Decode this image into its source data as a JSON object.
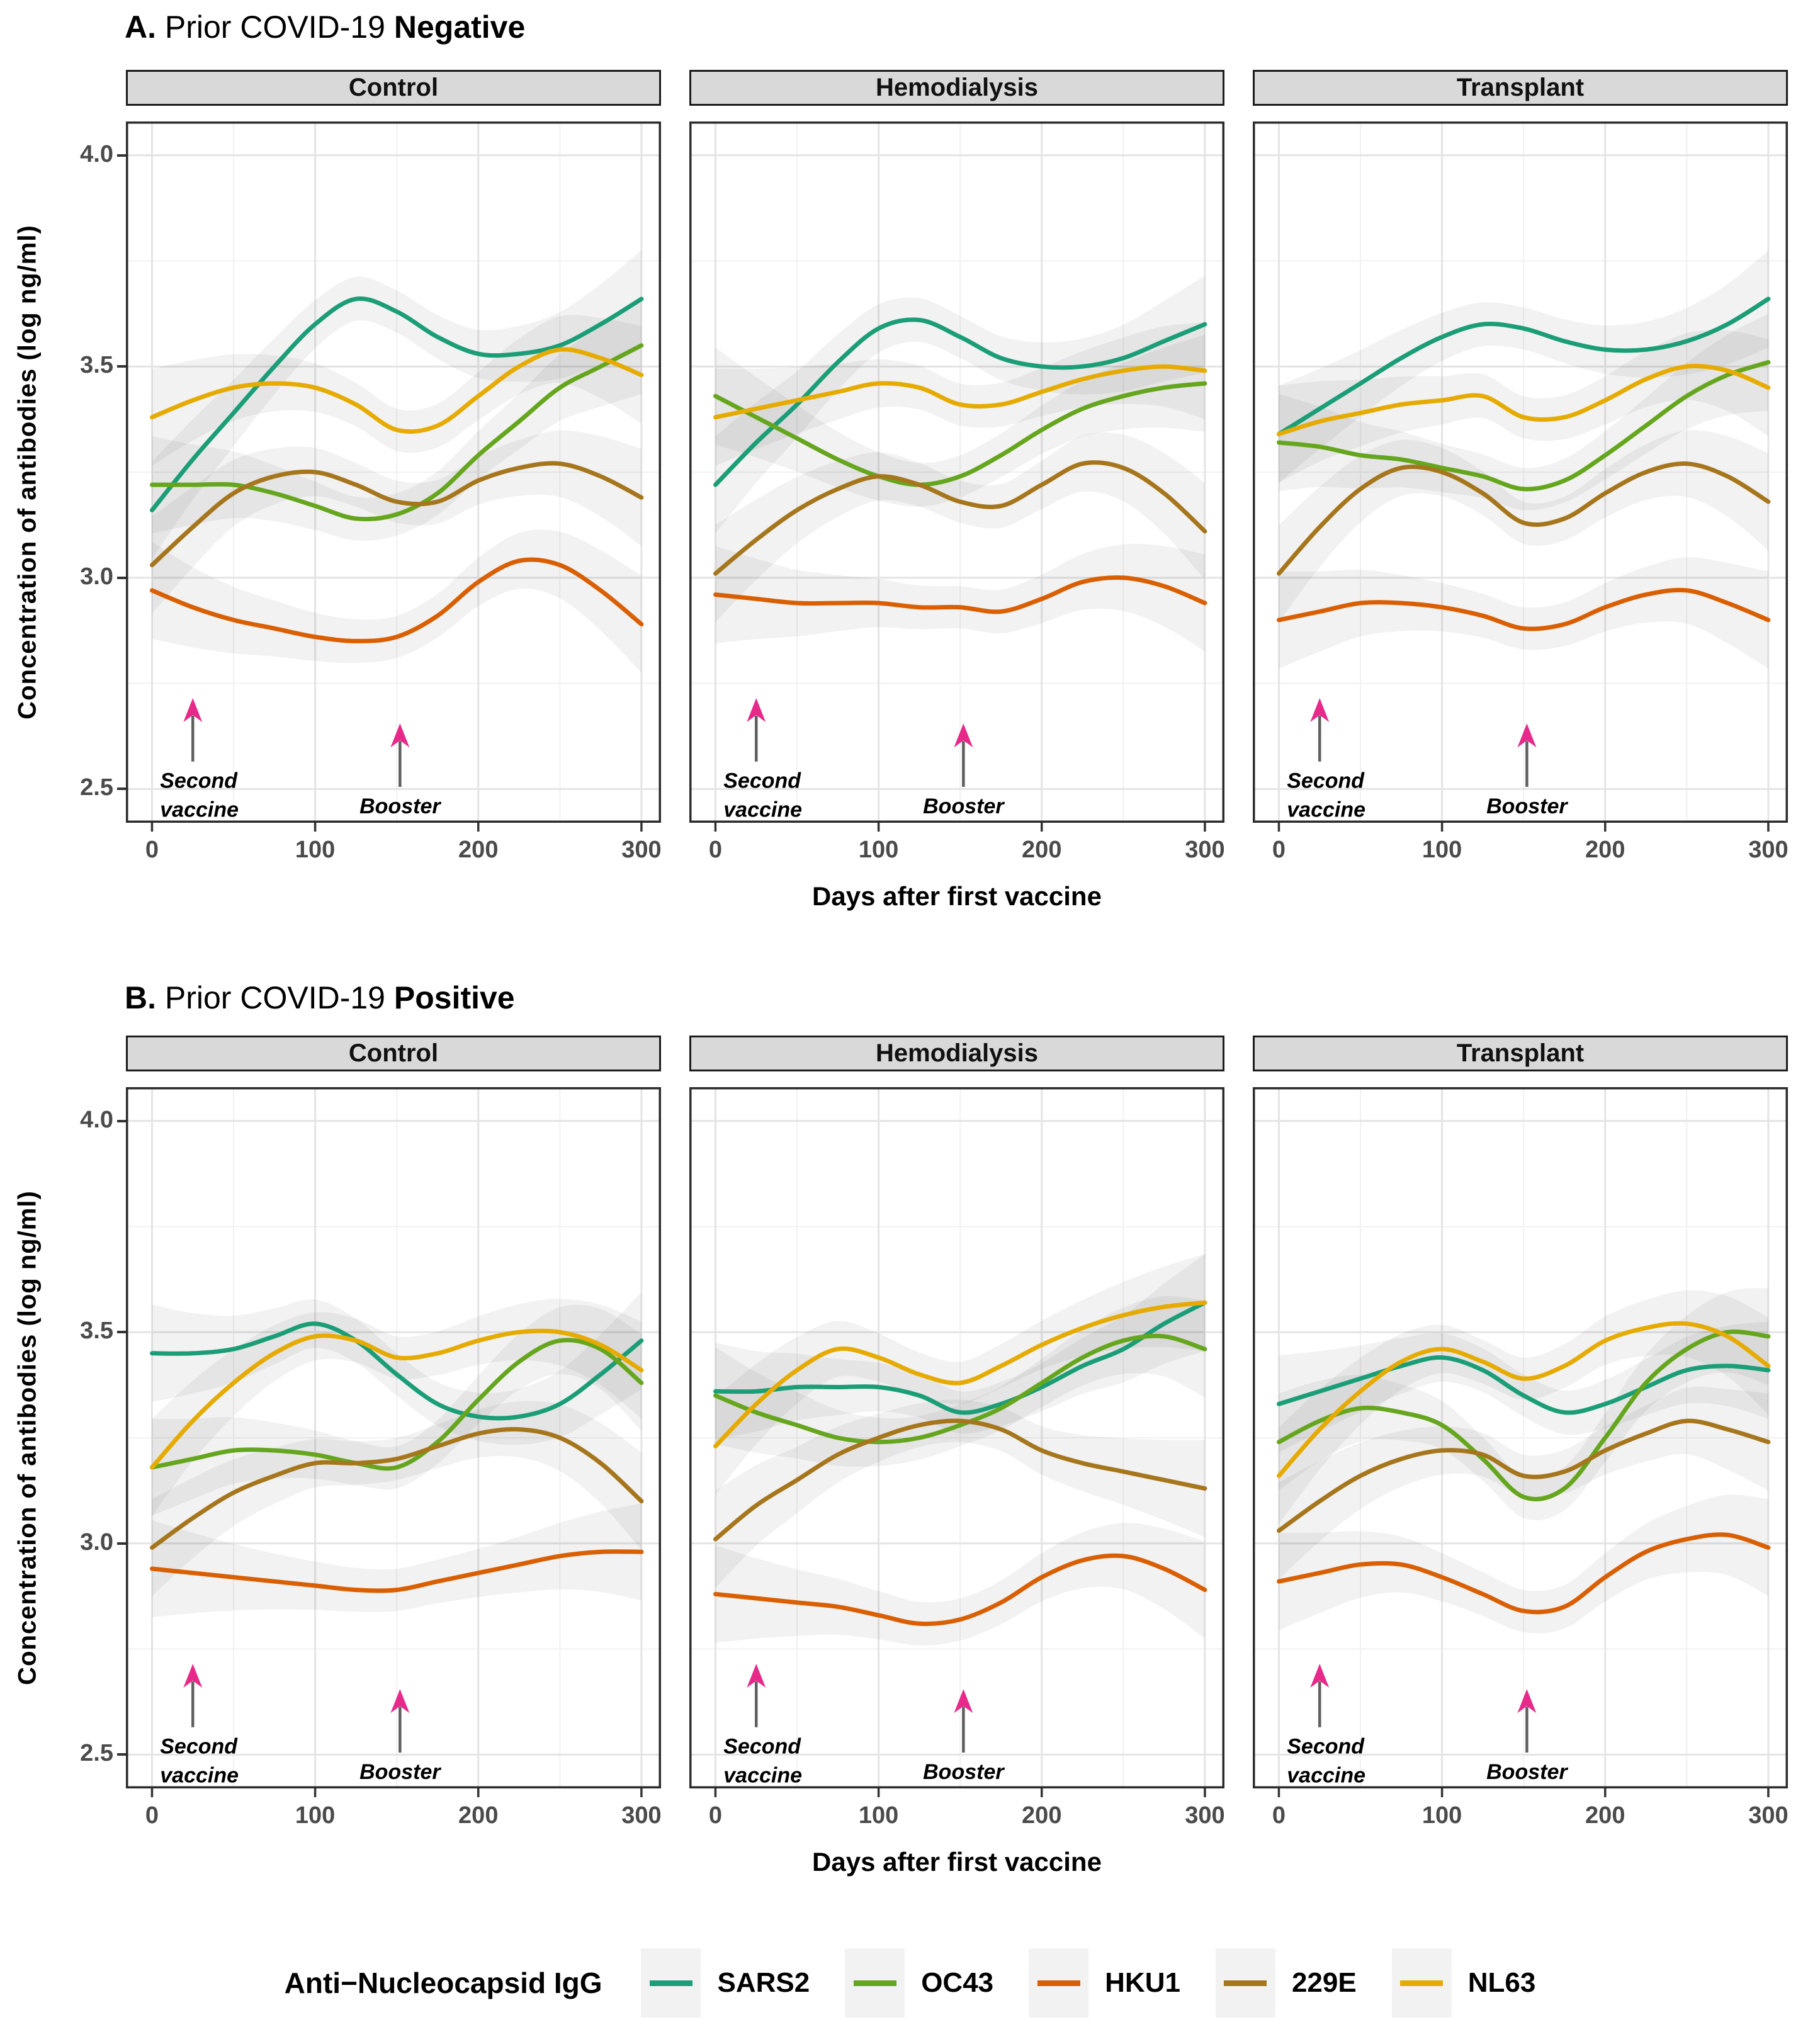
{
  "series_colors": {
    "SARS2": "#1B9E77",
    "OC43": "#66A61E",
    "HKU1": "#D95F02",
    "229E": "#A6761D",
    "NL63": "#E6AB02"
  },
  "accent_colors": {
    "arrow_head": "#E7298A",
    "arrow_stem": "#5f5f5f",
    "strip_bg": "#d9d9d9",
    "panel_border": "#2b2b2b",
    "grid_major": "#e4e4e4",
    "grid_minor": "#f1f1f1",
    "tick_text": "#4a4a4a",
    "band": "#000000"
  },
  "legend": {
    "title": "Anti−Nucleocapsid IgG",
    "entries": [
      {
        "label": "SARS2",
        "color": "#1B9E77"
      },
      {
        "label": "OC43",
        "color": "#66A61E"
      },
      {
        "label": "HKU1",
        "color": "#D95F02"
      },
      {
        "label": "229E",
        "color": "#A6761D"
      },
      {
        "label": "NL63",
        "color": "#E6AB02"
      }
    ]
  },
  "chart_data": [
    {
      "type": "line",
      "title": {
        "prefix": "A.",
        "text": " Prior COVID-19 ",
        "emph": "Negative"
      },
      "xlabel": "Days after first vaccine",
      "ylabel": "Concentration of antibodies (log ng/ml)",
      "x": [
        0,
        25,
        50,
        75,
        100,
        125,
        150,
        175,
        200,
        225,
        250,
        275,
        300
      ],
      "xticks": [
        0,
        100,
        200,
        300
      ],
      "xtick_labels": [
        "0",
        "100",
        "200",
        "300"
      ],
      "yticks": [
        4.0,
        3.5,
        3.0,
        2.5
      ],
      "ytick_labels": [
        "4.0",
        "3.5",
        "3.0",
        "2.5"
      ],
      "xlim": [
        -16,
        312
      ],
      "ylim": [
        2.42,
        4.08
      ],
      "grid_minor_x": [
        50,
        150,
        250
      ],
      "grid_minor_y": [
        3.75,
        3.25,
        2.75
      ],
      "ci_halfwidth": {
        "middle": 0.05,
        "edges": 0.115
      },
      "annotations": [
        {
          "lines": [
            "Second",
            "vaccine"
          ],
          "x": 25,
          "tip_y": 2.715,
          "base_y": 2.565,
          "align": "start"
        },
        {
          "lines": [
            "Booster"
          ],
          "x": 152,
          "tip_y": 2.655,
          "base_y": 2.505,
          "align": "middle"
        }
      ],
      "facets": [
        {
          "label": "Control",
          "series": [
            {
              "name": "SARS2",
              "values": [
                3.16,
                3.28,
                3.39,
                3.5,
                3.6,
                3.66,
                3.63,
                3.57,
                3.53,
                3.53,
                3.55,
                3.6,
                3.66
              ]
            },
            {
              "name": "OC43",
              "values": [
                3.22,
                3.22,
                3.22,
                3.2,
                3.17,
                3.14,
                3.15,
                3.2,
                3.29,
                3.37,
                3.45,
                3.5,
                3.55
              ]
            },
            {
              "name": "HKU1",
              "values": [
                2.97,
                2.93,
                2.9,
                2.88,
                2.86,
                2.85,
                2.86,
                2.91,
                2.99,
                3.04,
                3.03,
                2.97,
                2.89
              ]
            },
            {
              "name": "229E",
              "values": [
                3.03,
                3.12,
                3.2,
                3.24,
                3.25,
                3.22,
                3.18,
                3.18,
                3.23,
                3.26,
                3.27,
                3.24,
                3.19
              ]
            },
            {
              "name": "NL63",
              "values": [
                3.38,
                3.42,
                3.45,
                3.46,
                3.45,
                3.41,
                3.35,
                3.36,
                3.43,
                3.5,
                3.54,
                3.52,
                3.48
              ]
            }
          ]
        },
        {
          "label": "Hemodialysis",
          "series": [
            {
              "name": "SARS2",
              "values": [
                3.22,
                3.32,
                3.41,
                3.51,
                3.59,
                3.61,
                3.57,
                3.52,
                3.5,
                3.5,
                3.52,
                3.56,
                3.6
              ]
            },
            {
              "name": "OC43",
              "values": [
                3.43,
                3.38,
                3.33,
                3.28,
                3.24,
                3.22,
                3.24,
                3.29,
                3.35,
                3.4,
                3.43,
                3.45,
                3.46
              ]
            },
            {
              "name": "HKU1",
              "values": [
                2.96,
                2.95,
                2.94,
                2.94,
                2.94,
                2.93,
                2.93,
                2.92,
                2.95,
                2.99,
                3.0,
                2.98,
                2.94
              ]
            },
            {
              "name": "229E",
              "values": [
                3.01,
                3.09,
                3.16,
                3.21,
                3.24,
                3.22,
                3.18,
                3.17,
                3.22,
                3.27,
                3.26,
                3.2,
                3.11
              ]
            },
            {
              "name": "NL63",
              "values": [
                3.38,
                3.4,
                3.42,
                3.44,
                3.46,
                3.45,
                3.41,
                3.41,
                3.44,
                3.47,
                3.49,
                3.5,
                3.49
              ]
            }
          ]
        },
        {
          "label": "Transplant",
          "series": [
            {
              "name": "SARS2",
              "values": [
                3.34,
                3.4,
                3.46,
                3.52,
                3.57,
                3.6,
                3.59,
                3.56,
                3.54,
                3.54,
                3.56,
                3.6,
                3.66
              ]
            },
            {
              "name": "OC43",
              "values": [
                3.32,
                3.31,
                3.29,
                3.28,
                3.26,
                3.24,
                3.21,
                3.23,
                3.29,
                3.36,
                3.43,
                3.48,
                3.51
              ]
            },
            {
              "name": "HKU1",
              "values": [
                2.9,
                2.92,
                2.94,
                2.94,
                2.93,
                2.91,
                2.88,
                2.89,
                2.93,
                2.96,
                2.97,
                2.94,
                2.9
              ]
            },
            {
              "name": "229E",
              "values": [
                3.01,
                3.12,
                3.21,
                3.26,
                3.25,
                3.2,
                3.13,
                3.14,
                3.2,
                3.25,
                3.27,
                3.24,
                3.18
              ]
            },
            {
              "name": "NL63",
              "values": [
                3.34,
                3.37,
                3.39,
                3.41,
                3.42,
                3.43,
                3.38,
                3.38,
                3.42,
                3.47,
                3.5,
                3.49,
                3.45
              ]
            }
          ]
        }
      ]
    },
    {
      "type": "line",
      "title": {
        "prefix": "B.",
        "text": " Prior COVID-19 ",
        "emph": "Positive"
      },
      "xlabel": "Days after first vaccine",
      "ylabel": "Concentration of antibodies (log ng/ml)",
      "x": [
        0,
        25,
        50,
        75,
        100,
        125,
        150,
        175,
        200,
        225,
        250,
        275,
        300
      ],
      "xticks": [
        0,
        100,
        200,
        300
      ],
      "xtick_labels": [
        "0",
        "100",
        "200",
        "300"
      ],
      "yticks": [
        4.0,
        3.5,
        3.0,
        2.5
      ],
      "ytick_labels": [
        "4.0",
        "3.5",
        "3.0",
        "2.5"
      ],
      "xlim": [
        -16,
        312
      ],
      "ylim": [
        2.42,
        4.08
      ],
      "grid_minor_x": [
        50,
        150,
        250
      ],
      "grid_minor_y": [
        3.75,
        3.25,
        2.75
      ],
      "ci_halfwidth": {
        "middle": 0.05,
        "edges": 0.115
      },
      "annotations": [
        {
          "lines": [
            "Second",
            "vaccine"
          ],
          "x": 25,
          "tip_y": 2.715,
          "base_y": 2.565,
          "align": "start"
        },
        {
          "lines": [
            "Booster"
          ],
          "x": 152,
          "tip_y": 2.655,
          "base_y": 2.505,
          "align": "middle"
        }
      ],
      "facets": [
        {
          "label": "Control",
          "series": [
            {
              "name": "SARS2",
              "values": [
                3.45,
                3.45,
                3.46,
                3.49,
                3.52,
                3.48,
                3.4,
                3.33,
                3.3,
                3.3,
                3.33,
                3.4,
                3.48
              ]
            },
            {
              "name": "OC43",
              "values": [
                3.18,
                3.2,
                3.22,
                3.22,
                3.21,
                3.19,
                3.18,
                3.24,
                3.34,
                3.43,
                3.48,
                3.46,
                3.38
              ]
            },
            {
              "name": "HKU1",
              "values": [
                2.94,
                2.93,
                2.92,
                2.91,
                2.9,
                2.89,
                2.89,
                2.91,
                2.93,
                2.95,
                2.97,
                2.98,
                2.98
              ]
            },
            {
              "name": "229E",
              "values": [
                2.99,
                3.06,
                3.12,
                3.16,
                3.19,
                3.19,
                3.2,
                3.23,
                3.26,
                3.27,
                3.25,
                3.19,
                3.1
              ]
            },
            {
              "name": "NL63",
              "values": [
                3.18,
                3.29,
                3.38,
                3.45,
                3.49,
                3.48,
                3.44,
                3.45,
                3.48,
                3.5,
                3.5,
                3.47,
                3.41
              ]
            }
          ]
        },
        {
          "label": "Hemodialysis",
          "series": [
            {
              "name": "SARS2",
              "values": [
                3.36,
                3.36,
                3.37,
                3.37,
                3.37,
                3.35,
                3.31,
                3.33,
                3.37,
                3.42,
                3.46,
                3.52,
                3.57
              ]
            },
            {
              "name": "OC43",
              "values": [
                3.35,
                3.31,
                3.28,
                3.25,
                3.24,
                3.25,
                3.28,
                3.32,
                3.38,
                3.44,
                3.48,
                3.49,
                3.46
              ]
            },
            {
              "name": "HKU1",
              "values": [
                2.88,
                2.87,
                2.86,
                2.85,
                2.83,
                2.81,
                2.82,
                2.86,
                2.92,
                2.96,
                2.97,
                2.94,
                2.89
              ]
            },
            {
              "name": "229E",
              "values": [
                3.01,
                3.09,
                3.15,
                3.21,
                3.25,
                3.28,
                3.29,
                3.27,
                3.22,
                3.19,
                3.17,
                3.15,
                3.13
              ]
            },
            {
              "name": "NL63",
              "values": [
                3.23,
                3.33,
                3.41,
                3.46,
                3.44,
                3.4,
                3.38,
                3.42,
                3.47,
                3.51,
                3.54,
                3.56,
                3.57
              ]
            }
          ]
        },
        {
          "label": "Transplant",
          "series": [
            {
              "name": "SARS2",
              "values": [
                3.33,
                3.36,
                3.39,
                3.42,
                3.44,
                3.41,
                3.35,
                3.31,
                3.33,
                3.37,
                3.41,
                3.42,
                3.41
              ]
            },
            {
              "name": "OC43",
              "values": [
                3.24,
                3.29,
                3.32,
                3.31,
                3.28,
                3.2,
                3.11,
                3.13,
                3.25,
                3.38,
                3.46,
                3.5,
                3.49
              ]
            },
            {
              "name": "HKU1",
              "values": [
                2.91,
                2.93,
                2.95,
                2.95,
                2.92,
                2.88,
                2.84,
                2.85,
                2.92,
                2.98,
                3.01,
                3.02,
                2.99
              ]
            },
            {
              "name": "229E",
              "values": [
                3.03,
                3.1,
                3.16,
                3.2,
                3.22,
                3.21,
                3.16,
                3.17,
                3.22,
                3.26,
                3.29,
                3.27,
                3.24
              ]
            },
            {
              "name": "NL63",
              "values": [
                3.16,
                3.27,
                3.36,
                3.43,
                3.46,
                3.43,
                3.39,
                3.42,
                3.48,
                3.51,
                3.52,
                3.49,
                3.42
              ]
            }
          ]
        }
      ]
    }
  ]
}
